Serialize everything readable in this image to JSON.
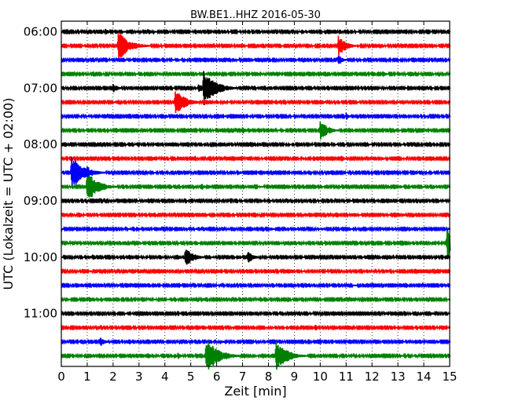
{
  "chart_data": {
    "type": "line",
    "title": "BW.BE1..HHZ 2016-05-30",
    "xlabel": "Zeit  [min]",
    "ylabel": "UTC (Lokalzeit = UTC + 02:00)",
    "xlim": [
      0,
      15
    ],
    "x_ticks": [
      "0",
      "1",
      "2",
      "3",
      "4",
      "5",
      "6",
      "7",
      "8",
      "9",
      "10",
      "11",
      "12",
      "13",
      "14",
      "15"
    ],
    "y_ticks": [
      "06:00",
      "07:00",
      "08:00",
      "09:00",
      "10:00",
      "11:00"
    ],
    "row_interval_min": 15,
    "first_row_time": "06:00",
    "grid": true,
    "row_colors": [
      "#000000",
      "#ff0000",
      "#0000ff",
      "#008000"
    ],
    "rows": [
      {
        "start": "06:00",
        "events": [
          [
            1.7,
            2
          ],
          [
            2.9,
            1
          ]
        ]
      },
      {
        "start": "06:15",
        "events": [
          [
            2.2,
            9
          ],
          [
            10.7,
            6
          ],
          [
            10.9,
            2
          ]
        ]
      },
      {
        "start": "06:30",
        "events": [
          [
            10.7,
            3
          ]
        ]
      },
      {
        "start": "06:45",
        "events": [
          [
            12.4,
            2
          ],
          [
            7.6,
            1
          ]
        ]
      },
      {
        "start": "07:00",
        "events": [
          [
            2.0,
            3
          ],
          [
            5.5,
            10
          ],
          [
            5.3,
            3
          ]
        ]
      },
      {
        "start": "07:15",
        "events": [
          [
            4.4,
            8
          ],
          [
            10.0,
            2
          ],
          [
            13.0,
            1
          ],
          [
            8.4,
            1
          ]
        ]
      },
      {
        "start": "07:30",
        "events": [
          [
            11.0,
            2
          ],
          [
            6.3,
            1
          ]
        ]
      },
      {
        "start": "07:45",
        "events": [
          [
            2.1,
            2
          ],
          [
            7.0,
            2
          ],
          [
            10.0,
            6
          ]
        ]
      },
      {
        "start": "08:00",
        "events": [
          [
            0.3,
            1
          ]
        ]
      },
      {
        "start": "08:15",
        "events": [
          [
            10.8,
            2
          ],
          [
            12.4,
            1
          ]
        ]
      },
      {
        "start": "08:30",
        "events": [
          [
            0.4,
            10
          ],
          [
            1.0,
            4
          ],
          [
            6.9,
            1
          ]
        ]
      },
      {
        "start": "08:45",
        "events": [
          [
            1.0,
            9
          ],
          [
            5.4,
            2
          ],
          [
            8.2,
            1
          ],
          [
            13.1,
            1
          ]
        ]
      },
      {
        "start": "09:00",
        "events": [
          [
            4.5,
            1
          ],
          [
            10.0,
            1
          ]
        ]
      },
      {
        "start": "09:15",
        "events": [
          [
            5.6,
            1
          ],
          [
            13.2,
            1
          ]
        ]
      },
      {
        "start": "09:30",
        "events": [
          [
            3.0,
            1
          ],
          [
            8.1,
            1
          ],
          [
            12.7,
            1
          ]
        ]
      },
      {
        "start": "09:45",
        "events": [
          [
            1.3,
            1
          ],
          [
            14.9,
            9
          ]
        ]
      },
      {
        "start": "10:00",
        "events": [
          [
            4.8,
            6
          ],
          [
            7.2,
            4
          ],
          [
            6.9,
            1
          ],
          [
            1.1,
            1
          ]
        ]
      },
      {
        "start": "10:15",
        "events": [
          [
            1.1,
            1
          ],
          [
            12.6,
            1
          ]
        ]
      },
      {
        "start": "10:30",
        "events": [
          [
            2.2,
            1
          ],
          [
            4.6,
            1
          ],
          [
            10.4,
            1
          ]
        ]
      },
      {
        "start": "10:45",
        "events": [
          [
            3.0,
            1
          ],
          [
            10.1,
            1
          ]
        ]
      },
      {
        "start": "11:00",
        "events": [
          [
            12.5,
            1
          ],
          [
            14.3,
            1
          ]
        ]
      },
      {
        "start": "11:15",
        "events": [
          [
            7.0,
            1
          ],
          [
            9.8,
            2
          ],
          [
            12.8,
            1
          ]
        ]
      },
      {
        "start": "11:30",
        "events": [
          [
            1.5,
            3
          ],
          [
            2.6,
            2
          ],
          [
            6.2,
            1
          ],
          [
            13.6,
            1
          ]
        ]
      },
      {
        "start": "11:45",
        "events": [
          [
            5.6,
            10
          ],
          [
            8.3,
            9
          ],
          [
            4.5,
            2
          ],
          [
            13.1,
            1
          ]
        ]
      }
    ]
  }
}
